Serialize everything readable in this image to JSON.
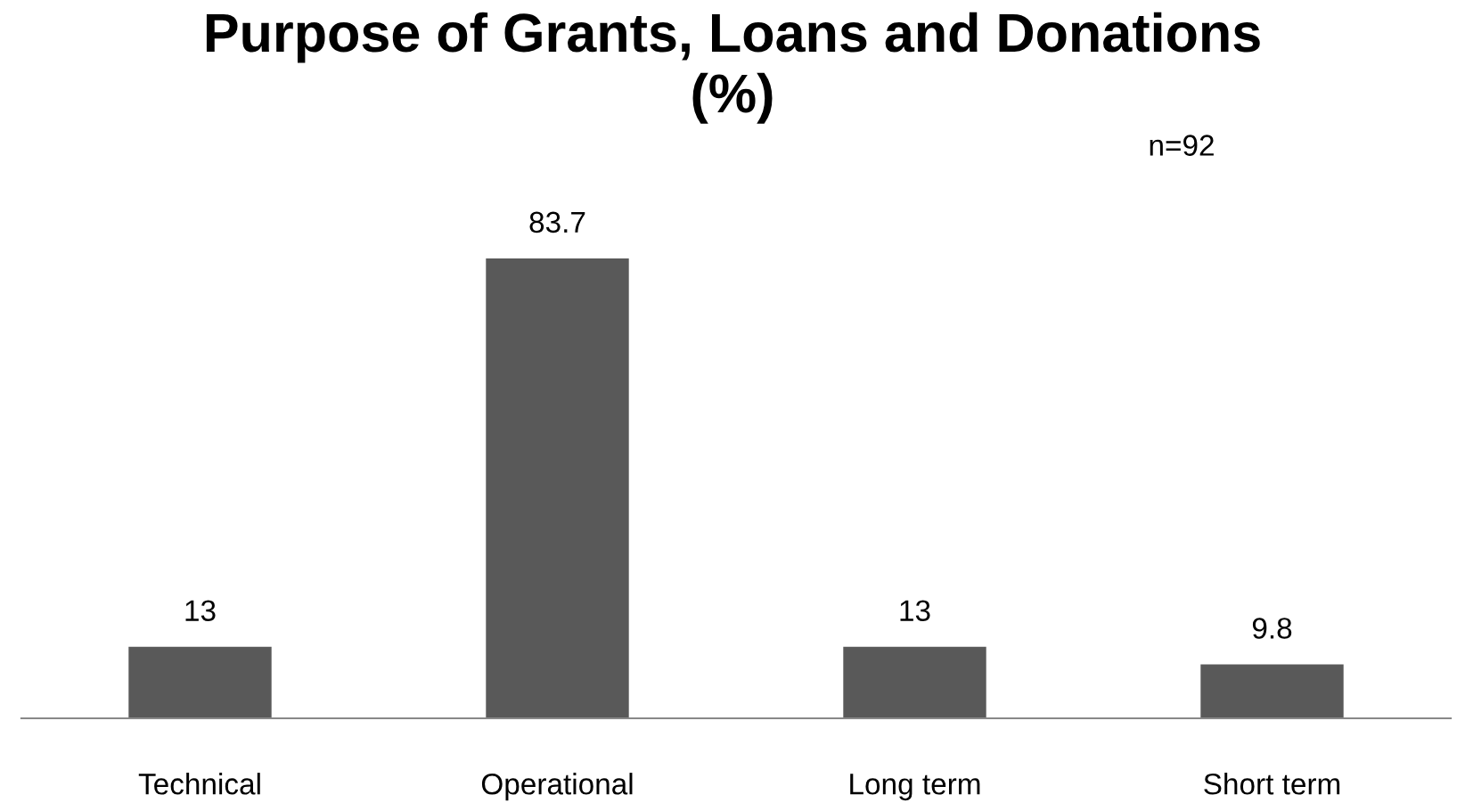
{
  "chart_data": {
    "type": "bar",
    "title": "Purpose of Grants, Loans and Donations\n(%)",
    "categories": [
      "Technical",
      "Operational",
      "Long term",
      "Short term"
    ],
    "values": [
      13,
      83.7,
      13,
      9.8
    ],
    "color": "#595959",
    "data_labels": true,
    "grid": false,
    "legend": false,
    "annotations": [
      "n=92"
    ]
  }
}
